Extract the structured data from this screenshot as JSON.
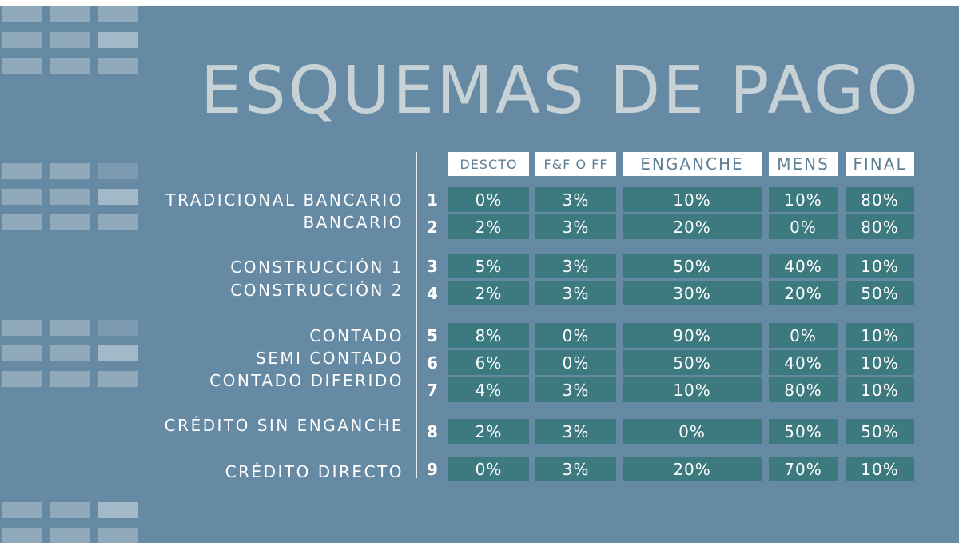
{
  "title": "ESQUEMAS DE PAGO",
  "columns": [
    "DESCTO",
    "F&F O FF",
    "ENGANCHE",
    "MENS",
    "FINAL"
  ],
  "labels": [
    "TRADICIONAL BANCARIO",
    "BANCARIO",
    "CONSTRUCCIÓN 1",
    "CONSTRUCCIÓN 2",
    "CONTADO",
    "SEMI CONTADO",
    "CONTADO DIFERIDO",
    "CRÉDITO SIN ENGANCHE",
    "CRÉDITO DIRECTO"
  ],
  "rows": [
    {
      "num": "1",
      "values": [
        "0%",
        "3%",
        "10%",
        "10%",
        "80%"
      ]
    },
    {
      "num": "2",
      "values": [
        "2%",
        "3%",
        "20%",
        "0%",
        "80%"
      ]
    },
    {
      "num": "3",
      "values": [
        "5%",
        "3%",
        "50%",
        "40%",
        "10%"
      ]
    },
    {
      "num": "4",
      "values": [
        "2%",
        "3%",
        "30%",
        "20%",
        "50%"
      ]
    },
    {
      "num": "5",
      "values": [
        "8%",
        "0%",
        "90%",
        "0%",
        "10%"
      ]
    },
    {
      "num": "6",
      "values": [
        "6%",
        "0%",
        "50%",
        "40%",
        "10%"
      ]
    },
    {
      "num": "7",
      "values": [
        "4%",
        "3%",
        "10%",
        "80%",
        "10%"
      ]
    },
    {
      "num": "8",
      "values": [
        "2%",
        "3%",
        "0%",
        "50%",
        "50%"
      ]
    },
    {
      "num": "9",
      "values": [
        "0%",
        "3%",
        "20%",
        "70%",
        "10%"
      ]
    }
  ]
}
